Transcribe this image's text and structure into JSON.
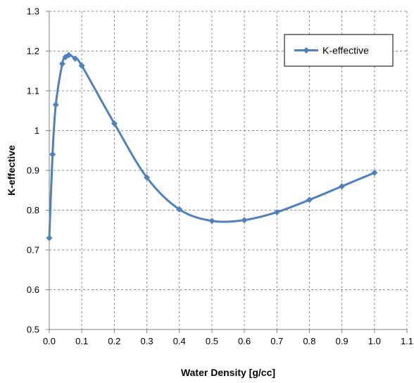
{
  "chart_data": {
    "type": "line",
    "xlabel": "Water Density [g/cc]",
    "ylabel": "K-effective",
    "xlim": [
      0,
      1.1
    ],
    "ylim": [
      0.5,
      1.3
    ],
    "x_ticks": [
      "0.0",
      "0.1",
      "0.2",
      "0.3",
      "0.4",
      "0.5",
      "0.6",
      "0.7",
      "0.8",
      "0.9",
      "1.0",
      "1.1"
    ],
    "y_ticks": [
      "0.5",
      "0.6",
      "0.7",
      "0.8",
      "0.9",
      "1",
      "1.1",
      "1.2",
      "1.3"
    ],
    "grid": "dashed",
    "legend_position": "top-right",
    "series": [
      {
        "name": "K-effective",
        "color": "#4f81bd",
        "marker": "diamond",
        "smooth": true,
        "x": [
          0.0,
          0.01,
          0.02,
          0.04,
          0.05,
          0.06,
          0.08,
          0.1,
          0.2,
          0.3,
          0.4,
          0.5,
          0.6,
          0.7,
          0.8,
          0.9,
          1.0
        ],
        "y": [
          0.73,
          0.94,
          1.065,
          1.168,
          1.185,
          1.19,
          1.181,
          1.163,
          1.018,
          0.882,
          0.802,
          0.773,
          0.775,
          0.795,
          0.826,
          0.86,
          0.894
        ]
      }
    ]
  }
}
